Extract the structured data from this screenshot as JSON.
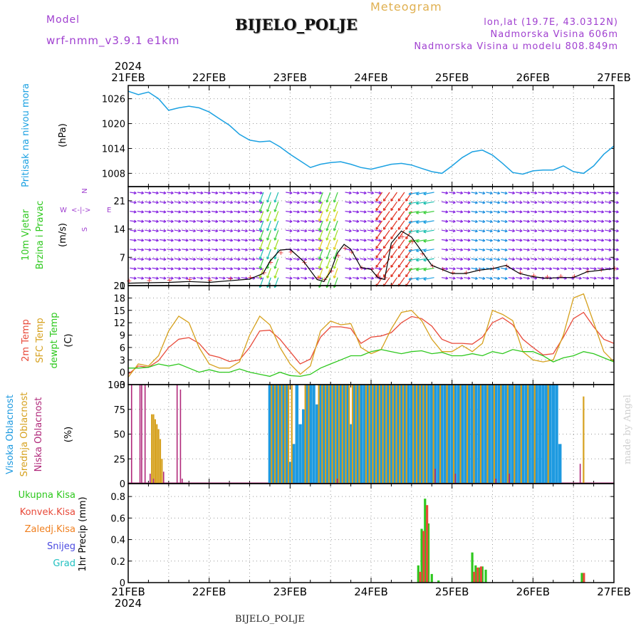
{
  "header": {
    "model_label": "Model",
    "model_name": "wrf-nmm_v3.9.1 e1km",
    "meteogram_label": "Meteogram",
    "station": "BIJELO_POLJE",
    "lonlat": "lon,lat (19.7E, 43.0312N)",
    "altitude": "Nadmorska Visina 606m",
    "model_altitude": "Nadmorska Visina u modelu 808.849m",
    "footer_station": "BIJELO_POLJE",
    "watermark": "made by Angel"
  },
  "colors": {
    "pressure": "#1ba1e2",
    "temp2m": "#e84a3a",
    "sfc": "#d6a11e",
    "dewpt": "#2ec81e",
    "high_cloud": "#1e9ae0",
    "mid_cloud": "#d6a11e",
    "low_cloud": "#b0287a",
    "precip_total": "#2ec81e",
    "precip_conv": "#e84a3a",
    "precip_frz": "#f08020",
    "snow": "#4a4ae0",
    "grad": "#20c0c0",
    "gust_line": "#000000",
    "wind_mark": "#e83a3a",
    "header_purple": "#a040d0",
    "header_gold": "#e0b050"
  },
  "chart_data": [
    {
      "panel": "time_axis",
      "type": "line",
      "year": "2024",
      "x_ticks": [
        "21FEB",
        "22FEB",
        "23FEB",
        "24FEB",
        "25FEB",
        "26FEB",
        "27FEB"
      ],
      "xlim_hours": [
        0,
        144
      ]
    },
    {
      "panel": "pressure",
      "type": "line",
      "ylabel_1": "Pritisak na nivou mora",
      "ylabel_2": "(hPa)",
      "ylim": [
        1004.8,
        1029.2
      ],
      "y_ticks": [
        "1008",
        "1014",
        "1020",
        "1026"
      ],
      "y_tick_values": [
        1008,
        1014,
        1020,
        1026
      ],
      "x": [
        0,
        3,
        6,
        9,
        12,
        15,
        18,
        21,
        24,
        27,
        30,
        33,
        36,
        39,
        42,
        45,
        48,
        51,
        54,
        57,
        60,
        63,
        66,
        69,
        72,
        75,
        78,
        81,
        84,
        87,
        90,
        93,
        96,
        99,
        102,
        105,
        108,
        111,
        114,
        117,
        120,
        123,
        126,
        129,
        132,
        135,
        138,
        141,
        144
      ],
      "values": [
        1027.8,
        1027.0,
        1027.6,
        1026.0,
        1023.2,
        1023.8,
        1024.2,
        1023.8,
        1022.8,
        1021.2,
        1019.6,
        1017.4,
        1016.0,
        1015.6,
        1015.8,
        1014.4,
        1012.6,
        1011.0,
        1009.4,
        1010.2,
        1010.6,
        1010.8,
        1010.2,
        1009.4,
        1009.0,
        1009.6,
        1010.2,
        1010.4,
        1010.0,
        1009.2,
        1008.4,
        1008.0,
        1009.8,
        1011.8,
        1013.2,
        1013.6,
        1012.4,
        1010.4,
        1008.2,
        1007.8,
        1008.6,
        1008.8,
        1008.8,
        1009.8,
        1008.4,
        1008.0,
        1009.8,
        1012.6,
        1014.6
      ]
    },
    {
      "panel": "wind",
      "type": "line",
      "ylabel_1": "10m Vjetar",
      "ylabel_2": "Brzina i Pravac",
      "ylabel_3": "(m/s)",
      "compass": {
        "n": "N",
        "w": "W",
        "e": "E",
        "s": "S"
      },
      "ylim": [
        0,
        24.5
      ],
      "y_ticks": [
        "0",
        "7",
        "14",
        "21"
      ],
      "y_tick_values": [
        0,
        7,
        14,
        21
      ],
      "x": [
        0,
        6,
        12,
        18,
        24,
        30,
        36,
        40,
        42,
        45,
        48,
        52,
        56,
        58,
        60,
        62,
        64,
        66,
        69,
        72,
        74,
        76,
        78,
        81,
        84,
        87,
        90,
        93,
        96,
        100,
        104,
        108,
        112,
        116,
        120,
        124,
        128,
        132,
        136,
        140,
        144
      ],
      "values": [
        0.6,
        0.7,
        0.8,
        1.0,
        0.8,
        1.2,
        1.6,
        3.0,
        6.0,
        8.8,
        9.0,
        6.0,
        1.5,
        1.0,
        3.5,
        8.0,
        10.2,
        9.0,
        4.5,
        4.0,
        2.0,
        1.5,
        10.5,
        13.5,
        12.0,
        8.5,
        5.0,
        4.0,
        3.0,
        3.0,
        3.8,
        4.2,
        5.0,
        3.0,
        2.2,
        1.8,
        2.0,
        2.0,
        3.4,
        3.8,
        4.2
      ]
    },
    {
      "panel": "temperature",
      "type": "line",
      "ylabel_1": "2m Temp",
      "ylabel_2": "SFC Temp",
      "ylabel_3": "dewpt Temp",
      "ylabel_4": "(C)",
      "ylim": [
        -3,
        21
      ],
      "y_ticks": [
        "-3",
        "0",
        "3",
        "6",
        "9",
        "12",
        "15",
        "18",
        "21"
      ],
      "y_tick_values": [
        -3,
        0,
        3,
        6,
        9,
        12,
        15,
        18,
        21
      ],
      "x": [
        0,
        3,
        6,
        9,
        12,
        15,
        18,
        21,
        24,
        27,
        30,
        33,
        36,
        39,
        42,
        45,
        48,
        51,
        54,
        57,
        60,
        63,
        66,
        69,
        72,
        75,
        78,
        81,
        84,
        87,
        90,
        93,
        96,
        99,
        102,
        105,
        108,
        111,
        114,
        117,
        120,
        123,
        126,
        129,
        132,
        135,
        138,
        141,
        144
      ],
      "series": [
        {
          "name": "2m Temp",
          "values": [
            -0.5,
            1.5,
            1.2,
            2.8,
            6.0,
            8.0,
            8.4,
            7.0,
            4.2,
            3.6,
            2.6,
            3.0,
            6.0,
            10.0,
            10.2,
            8.0,
            5.0,
            2.0,
            3.2,
            8.5,
            11.0,
            11.0,
            10.6,
            7.0,
            8.5,
            8.8,
            9.6,
            12.0,
            13.5,
            13.0,
            11.2,
            8.0,
            7.0,
            7.0,
            6.8,
            8.5,
            12.0,
            13.2,
            11.5,
            8.0,
            6.0,
            4.2,
            4.5,
            8.5,
            13.0,
            14.5,
            11.0,
            8.0,
            7.0
          ]
        },
        {
          "name": "SFC Temp",
          "values": [
            -1.2,
            2.0,
            1.5,
            4.0,
            10.0,
            13.6,
            12.0,
            6.0,
            2.0,
            1.0,
            1.0,
            2.5,
            9.0,
            13.6,
            11.5,
            6.0,
            2.0,
            -0.5,
            1.5,
            10.0,
            12.4,
            11.5,
            11.8,
            6.0,
            4.5,
            5.5,
            10.5,
            14.5,
            15.0,
            12.5,
            8.0,
            5.0,
            5.0,
            6.5,
            5.0,
            7.0,
            15.0,
            14.0,
            12.5,
            5.0,
            3.0,
            2.5,
            3.0,
            9.0,
            18.0,
            19.0,
            12.0,
            5.0,
            2.5
          ]
        },
        {
          "name": "dewpt Temp",
          "values": [
            1.0,
            1.0,
            1.2,
            2.0,
            1.5,
            2.0,
            1.0,
            0.0,
            0.6,
            0.0,
            0.0,
            0.8,
            0.0,
            -0.5,
            -1.0,
            0.0,
            -0.8,
            -1.0,
            -0.5,
            1.0,
            2.0,
            3.0,
            4.0,
            4.0,
            5.0,
            5.5,
            5.0,
            4.5,
            5.0,
            5.2,
            4.5,
            4.8,
            4.0,
            4.0,
            4.5,
            4.0,
            5.0,
            4.5,
            5.5,
            5.0,
            5.0,
            4.0,
            2.5,
            3.5,
            4.0,
            5.0,
            4.5,
            3.5,
            2.5
          ]
        }
      ]
    },
    {
      "panel": "clouds",
      "type": "bar",
      "ylabel_1": "Visoka Oblacnost",
      "ylabel_2": "Srednja Oblacnost",
      "ylabel_3": "Niska Oblacnost",
      "ylabel_4": "(%)",
      "ylim": [
        0,
        100
      ],
      "y_ticks": [
        "0",
        "25",
        "50",
        "75",
        "100"
      ],
      "y_tick_values": [
        0,
        25,
        50,
        75,
        100
      ],
      "series": [
        {
          "name": "Visoka Oblacnost",
          "x": [
            42,
            43,
            44,
            45,
            46,
            47,
            48,
            49,
            50,
            51,
            52,
            53,
            54,
            55,
            56,
            57,
            58,
            59,
            60,
            61,
            62,
            63,
            64,
            65,
            66,
            67,
            68,
            69,
            70,
            71,
            72,
            73,
            74,
            75,
            76,
            77,
            78,
            79,
            80,
            81,
            82,
            83,
            84,
            85,
            86,
            87,
            88,
            89,
            90,
            91,
            92,
            93,
            94,
            95,
            96,
            97,
            98,
            99,
            100,
            101,
            102,
            103,
            104,
            105,
            106,
            107,
            108,
            109,
            110,
            111,
            112,
            113,
            114,
            115,
            116,
            117,
            118,
            119,
            120,
            121,
            122,
            123,
            124,
            125,
            126,
            127,
            128
          ],
          "values": [
            100,
            100,
            100,
            100,
            100,
            100,
            22,
            40,
            100,
            60,
            75,
            100,
            100,
            100,
            80,
            100,
            100,
            100,
            100,
            100,
            100,
            100,
            100,
            100,
            60,
            100,
            100,
            100,
            100,
            100,
            100,
            100,
            100,
            100,
            100,
            100,
            100,
            100,
            100,
            100,
            100,
            100,
            100,
            100,
            100,
            100,
            100,
            100,
            100,
            100,
            100,
            100,
            100,
            100,
            100,
            100,
            100,
            100,
            100,
            100,
            100,
            100,
            100,
            100,
            100,
            100,
            100,
            100,
            100,
            100,
            100,
            100,
            100,
            100,
            100,
            100,
            100,
            100,
            100,
            100,
            100,
            100,
            100,
            100,
            100,
            100,
            40
          ]
        },
        {
          "name": "Srednja Oblacnost",
          "x": [
            7,
            7.5,
            8,
            8.5,
            9,
            9.5,
            10,
            42.5,
            43.5,
            44.5,
            45.5,
            46.5,
            47.5,
            48.5,
            52.5,
            53.5,
            56.5,
            57.5,
            58.5,
            59.5,
            60.5,
            61.5,
            62.5,
            63.5,
            64.5,
            65.5,
            66.5,
            67.5,
            68.5,
            70.5,
            71.5,
            72.5,
            73.5,
            74.5,
            75.5,
            76.5,
            77.5,
            78.5,
            79.5,
            80.5,
            81.5,
            82.5,
            84.5,
            85.5,
            86.5,
            87.5,
            88.5,
            90.5,
            92.5,
            94.5,
            96.5,
            98.5,
            100.5,
            102.5,
            104.5,
            106.5,
            108.5,
            110.5,
            112.5,
            114.5,
            116.5,
            118.5,
            120.5,
            124.5,
            135
          ],
          "values": [
            70,
            70,
            65,
            60,
            55,
            45,
            25,
            100,
            100,
            100,
            100,
            100,
            100,
            100,
            100,
            100,
            100,
            100,
            100,
            100,
            100,
            100,
            100,
            100,
            100,
            100,
            100,
            100,
            100,
            100,
            100,
            100,
            100,
            100,
            100,
            100,
            100,
            100,
            100,
            100,
            100,
            100,
            100,
            100,
            100,
            100,
            100,
            100,
            100,
            100,
            100,
            100,
            100,
            100,
            100,
            100,
            100,
            100,
            100,
            100,
            100,
            100,
            100,
            100,
            88
          ]
        },
        {
          "name": "Niska Oblacnost",
          "x": [
            1,
            3.5,
            4,
            5,
            6.5,
            7.5,
            10.5,
            14.5,
            15.5,
            16,
            62,
            91,
            97,
            109,
            113,
            134
          ],
          "values": [
            100,
            100,
            100,
            100,
            10,
            5,
            12,
            100,
            95,
            5,
            5,
            15,
            10,
            5,
            10,
            20
          ]
        }
      ]
    },
    {
      "panel": "precipitation",
      "type": "bar",
      "legend_1": "Ukupna Kisa",
      "legend_2": "Konvek.Kisa",
      "legend_3": "Zaledj.Kisa",
      "legend_4": "Snijeg",
      "legend_5": "Grad",
      "ylabel": "1hr Precip (mm)",
      "ylim": [
        0,
        0.92
      ],
      "y_ticks": [
        "0",
        "0.2",
        "0.4",
        "0.6",
        "0.8"
      ],
      "y_tick_values": [
        0,
        0.2,
        0.4,
        0.6,
        0.8
      ],
      "series": [
        {
          "name": "Ukupna Kisa",
          "x": [
            86,
            87,
            88,
            89,
            90,
            92,
            102,
            103,
            104,
            105,
            106,
            134.5
          ],
          "values": [
            0.16,
            0.5,
            0.78,
            0.55,
            0.08,
            0.02,
            0.28,
            0.16,
            0.14,
            0.15,
            0.12,
            0.09
          ]
        },
        {
          "name": "Konvek.Kisa",
          "x": [
            86.6,
            87.6,
            88.6,
            102.6,
            103.6,
            104.6,
            135.1
          ],
          "values": [
            0.1,
            0.48,
            0.72,
            0.1,
            0.14,
            0.15,
            0.09
          ]
        }
      ]
    }
  ]
}
